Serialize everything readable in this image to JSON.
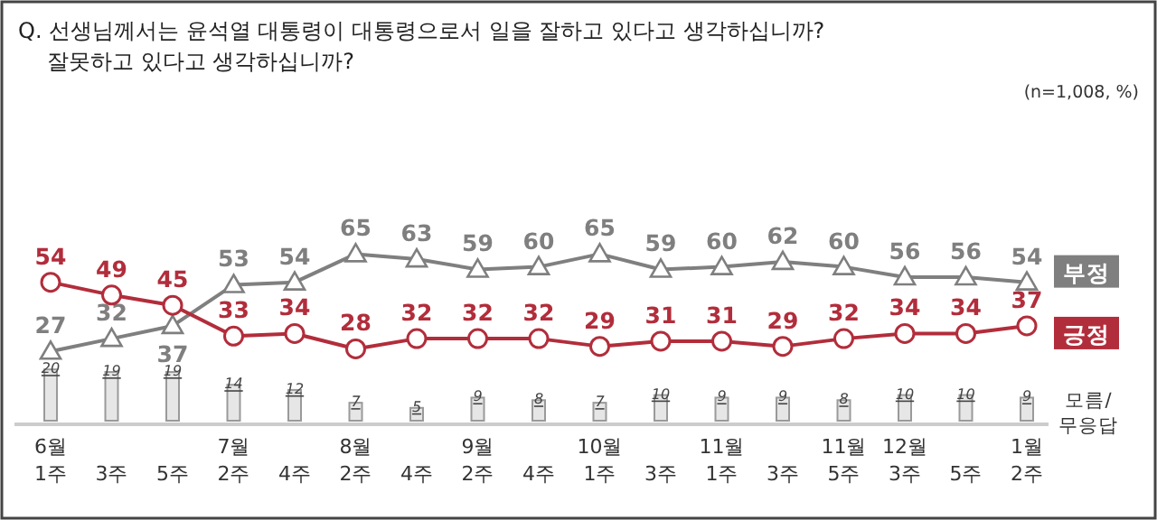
{
  "chart_data": {
    "type": "line",
    "title": "Q. 선생님께서는 윤석열 대통령이 대통령으로서 일을 잘하고 있다고 생각하십니까?",
    "subtitle": "잘못하고 있다고 생각하십니까?",
    "annotations": [
      "(n=1,008, %)"
    ],
    "categories": [
      "6월 1주",
      "3주",
      "5주",
      "7월 2주",
      "4주",
      "8월 2주",
      "4주",
      "9월 2주",
      "4주",
      "10월 1주",
      "3주",
      "11월 1주",
      "3주",
      "11월 5주",
      "12월 3주",
      "5주",
      "1월 2주"
    ],
    "series": [
      {
        "name": "부정",
        "color": "#7f7f7f",
        "marker": "triangle",
        "values": [
          27,
          32,
          37,
          53,
          54,
          65,
          63,
          59,
          60,
          65,
          59,
          60,
          62,
          60,
          56,
          56,
          54
        ]
      },
      {
        "name": "긍정",
        "color": "#b22d3b",
        "marker": "circle",
        "values": [
          54,
          49,
          45,
          33,
          34,
          28,
          32,
          32,
          32,
          29,
          31,
          31,
          29,
          32,
          34,
          34,
          37
        ]
      },
      {
        "name": "모름/무응답",
        "type": "bar",
        "color": "#e6e6e6",
        "values": [
          20,
          19,
          19,
          14,
          12,
          7,
          5,
          9,
          8,
          7,
          10,
          9,
          9,
          8,
          10,
          10,
          9
        ]
      }
    ],
    "data_labels": true,
    "legend": "right"
  }
}
